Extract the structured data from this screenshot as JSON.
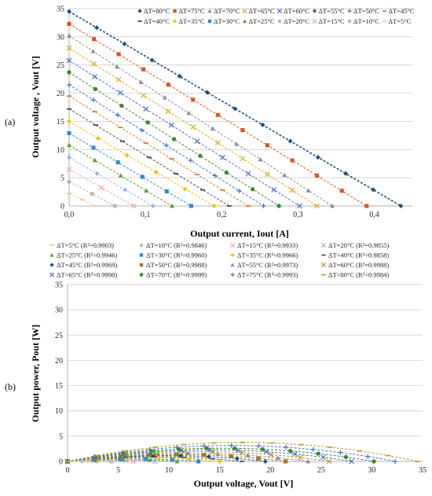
{
  "figure": {
    "panel_a_label": "(a)",
    "panel_b_label": "(b)"
  },
  "chart_data": [
    {
      "type": "scatter",
      "xlabel": "Output current, Iout [A]",
      "ylabel": "Output voltage , Vout [V]",
      "xlim": [
        0,
        0.45
      ],
      "ylim": [
        0,
        35
      ],
      "xticks": [
        "0,0",
        "0,1",
        "0,2",
        "0,3",
        "0,4"
      ],
      "yticks": [
        "0",
        "5",
        "10",
        "15",
        "20",
        "25",
        "30",
        "35"
      ],
      "grid": "horizontal",
      "legend_position": "top-right",
      "series": [
        {
          "name": "ΔT=80°C",
          "marker": "diamond",
          "color": "#1f4e79",
          "voc": 34.5,
          "isc": 0.435
        },
        {
          "name": "ΔT=75°C",
          "marker": "square",
          "color": "#d9541e",
          "voc": 32.3,
          "isc": 0.39
        },
        {
          "name": "ΔT=70°C",
          "marker": "triangle",
          "color": "#8c8c8c",
          "voc": 30.2,
          "isc": 0.345
        },
        {
          "name": "ΔT=65°C",
          "marker": "x",
          "color": "#e0a81c",
          "voc": 28.0,
          "isc": 0.325
        },
        {
          "name": "ΔT=60°C",
          "marker": "x",
          "color": "#4472c4",
          "voc": 25.8,
          "isc": 0.302
        },
        {
          "name": "ΔT=55°C",
          "marker": "circle",
          "color": "#3a8a2e",
          "voc": 23.7,
          "isc": 0.275
        },
        {
          "name": "ΔT=50°C",
          "marker": "plus",
          "color": "#4472c4",
          "voc": 21.5,
          "isc": 0.255
        },
        {
          "name": "ΔT=45°C",
          "marker": "dash",
          "color": "#e07a2e",
          "voc": 19.5,
          "isc": 0.235
        },
        {
          "name": "ΔT=40°C",
          "marker": "dash",
          "color": "#4d4d4d",
          "voc": 17.2,
          "isc": 0.21
        },
        {
          "name": "ΔT=35°C",
          "marker": "diamond",
          "color": "#f2c200",
          "voc": 15.0,
          "isc": 0.19
        },
        {
          "name": "ΔT=30°C",
          "marker": "square",
          "color": "#2e8bd1",
          "voc": 12.9,
          "isc": 0.16
        },
        {
          "name": "ΔT=25°C",
          "marker": "triangle",
          "color": "#5aa02c",
          "voc": 10.8,
          "isc": 0.135
        },
        {
          "name": "ΔT=20°C",
          "marker": "diamond",
          "color": "#9cb4dc",
          "voc": 8.6,
          "isc": 0.11
        },
        {
          "name": "ΔT=15°C",
          "marker": "x",
          "color": "#f2a6a0",
          "voc": 6.5,
          "isc": 0.085
        },
        {
          "name": "ΔT=10°C",
          "marker": "circle",
          "color": "#b8b8b8",
          "voc": 4.3,
          "isc": 0.06
        },
        {
          "name": "ΔT=5°C",
          "marker": "dash",
          "color": "#f5c890",
          "voc": 2.2,
          "isc": 0.035
        }
      ]
    },
    {
      "type": "scatter",
      "xlabel": "Output voltage, Vout [V]",
      "ylabel": "Output power, Pout  [W]",
      "xlim": [
        0,
        35
      ],
      "ylim": [
        0,
        35
      ],
      "xticks": [
        "0",
        "5",
        "10",
        "15",
        "20",
        "25",
        "30",
        "35"
      ],
      "yticks": [
        "0",
        "5",
        "10",
        "15",
        "20",
        "25",
        "30",
        "35"
      ],
      "grid": "horizontal",
      "legend_position": "top",
      "series": [
        {
          "name": "ΔT=5°C (R²=0.9903)",
          "marker": "dash",
          "color": "#f5c890",
          "voc": 2.2,
          "isc": 0.035
        },
        {
          "name": "ΔT=10°C (R²=0.9846)",
          "marker": "circle",
          "color": "#b8b8b8",
          "voc": 4.3,
          "isc": 0.06
        },
        {
          "name": "ΔT=15°C (R²=0.9933)",
          "marker": "x",
          "color": "#f2a6a0",
          "voc": 6.5,
          "isc": 0.085
        },
        {
          "name": "ΔT=20°C (R²=0.9855)",
          "marker": "x",
          "color": "#9cb4dc",
          "voc": 8.6,
          "isc": 0.11
        },
        {
          "name": "ΔT=25°C (R²=0.9946)",
          "marker": "triangle",
          "color": "#5aa02c",
          "voc": 10.8,
          "isc": 0.135
        },
        {
          "name": "ΔT=30°C (R²=0.9960)",
          "marker": "square",
          "color": "#2e8bd1",
          "voc": 12.9,
          "isc": 0.16
        },
        {
          "name": "ΔT=35°C (R²=0.9966)",
          "marker": "diamond",
          "color": "#f2c200",
          "voc": 15.0,
          "isc": 0.19
        },
        {
          "name": "ΔT=40°C (R²=0.9858)",
          "marker": "dash",
          "color": "#4d4d4d",
          "voc": 17.2,
          "isc": 0.21
        },
        {
          "name": "ΔT=45°C (R²=0.9969)",
          "marker": "diamond",
          "color": "#1f4e79",
          "voc": 19.5,
          "isc": 0.235
        },
        {
          "name": "ΔT=50°C (R²=0.9988)",
          "marker": "square",
          "color": "#a0761a",
          "voc": 21.5,
          "isc": 0.255
        },
        {
          "name": "ΔT=55°C (R²=0.9973)",
          "marker": "triangle",
          "color": "#8c8c8c",
          "voc": 23.7,
          "isc": 0.275
        },
        {
          "name": "ΔT=60°C (R²=0.9988)",
          "marker": "x",
          "color": "#b8941e",
          "voc": 25.8,
          "isc": 0.302
        },
        {
          "name": "ΔT=65°C (R²=0.9998)",
          "marker": "x",
          "color": "#4472c4",
          "voc": 28.0,
          "isc": 0.325
        },
        {
          "name": "ΔT=70°C (R²=0.9999)",
          "marker": "circle",
          "color": "#3a8a2e",
          "voc": 30.2,
          "isc": 0.345
        },
        {
          "name": "ΔT=75°C (R²=0.9993)",
          "marker": "plus",
          "color": "#4472c4",
          "voc": 32.3,
          "isc": 0.39
        },
        {
          "name": "ΔT=80°C (R²=0.9984)",
          "marker": "dash",
          "color": "#c8962a",
          "voc": 34.5,
          "isc": 0.435
        }
      ]
    }
  ]
}
